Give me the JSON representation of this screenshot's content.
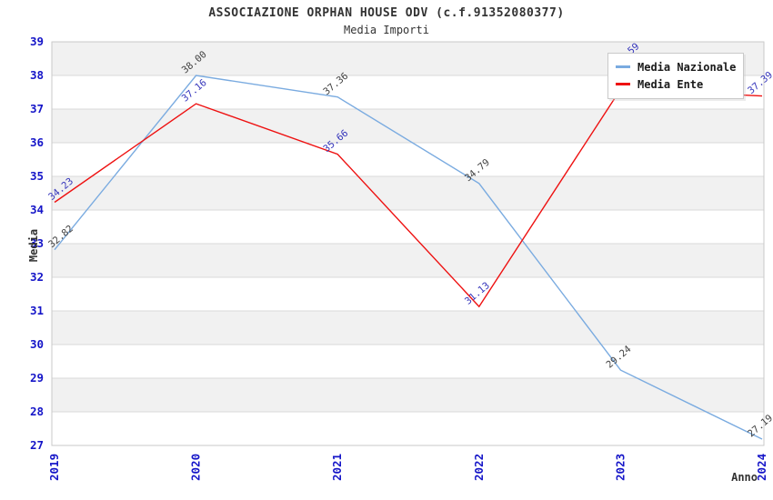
{
  "header": {
    "title": "ASSOCIAZIONE ORPHAN HOUSE ODV (c.f.91352080377)",
    "subtitle": "Media Importi"
  },
  "axes": {
    "y_label": "Media",
    "x_label": "Anno"
  },
  "legend": {
    "items": [
      {
        "label": "Media Nazionale",
        "color": "#7aabe0"
      },
      {
        "label": "Media Ente",
        "color": "#ee1111"
      }
    ]
  },
  "colors": {
    "tick_label": "#1515c8",
    "grid_line": "#d9d9d9",
    "plot_border": "#c9c9c9",
    "band_gray": "#f1f1f1",
    "band_white": "#ffffff",
    "label_dark": "#3f3f3f",
    "label_blue": "#3434bb"
  },
  "chart_data": {
    "type": "line",
    "title": "ASSOCIAZIONE ORPHAN HOUSE ODV (c.f.91352080377)",
    "subtitle": "Media Importi",
    "xlabel": "Anno",
    "ylabel": "Media",
    "x": [
      2019,
      2020,
      2021,
      2022,
      2023,
      2024
    ],
    "ylim": [
      27,
      39
    ],
    "y_ticks": [
      27,
      28,
      29,
      30,
      31,
      32,
      33,
      34,
      35,
      36,
      37,
      38,
      39
    ],
    "grid": true,
    "legend_position": "top-right",
    "series": [
      {
        "name": "Media Nazionale",
        "color": "#7aabe0",
        "label_color": "#3f3f3f",
        "values": [
          32.82,
          38.0,
          37.36,
          34.79,
          29.24,
          27.19
        ]
      },
      {
        "name": "Media Ente",
        "color": "#ee1111",
        "label_color": "#3434bb",
        "values": [
          34.23,
          37.16,
          35.66,
          31.13,
          37.59,
          37.39
        ]
      }
    ]
  }
}
